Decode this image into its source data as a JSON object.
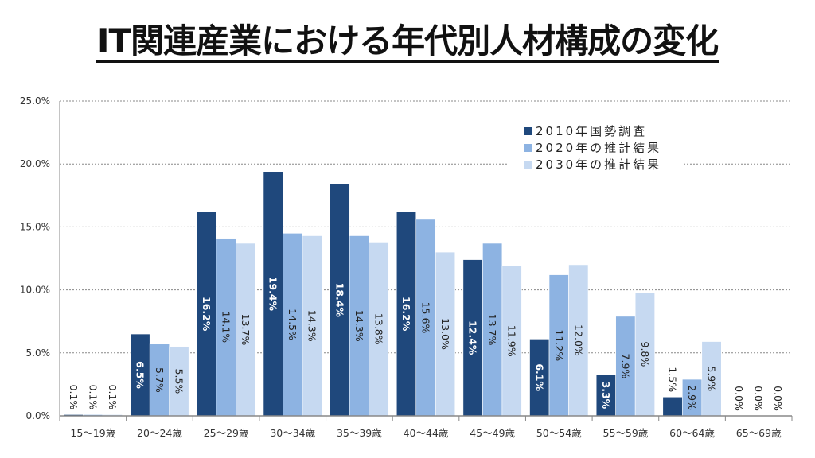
{
  "chart_data": {
    "type": "bar",
    "title": "IT関連産業における年代別人材構成の変化",
    "categories": [
      "15～19歳",
      "20～24歳",
      "25～29歳",
      "30～34歳",
      "35～39歳",
      "40～44歳",
      "45～49歳",
      "50～54歳",
      "55～59歳",
      "60～64歳",
      "65～69歳"
    ],
    "series": [
      {
        "name": "2010年国勢調査",
        "color": "#1f487c",
        "values": [
          0.1,
          6.5,
          16.2,
          19.4,
          18.4,
          16.2,
          12.4,
          6.1,
          3.3,
          1.5,
          0.0
        ]
      },
      {
        "name": "2020年の推計結果",
        "color": "#8db3e2",
        "values": [
          0.1,
          5.7,
          14.1,
          14.5,
          14.3,
          15.6,
          13.7,
          11.2,
          7.9,
          2.9,
          0.0
        ]
      },
      {
        "name": "2030年の推計結果",
        "color": "#c6d9f1",
        "values": [
          0.1,
          5.5,
          13.7,
          14.3,
          13.8,
          13.0,
          11.9,
          12.0,
          9.8,
          5.9,
          0.0
        ]
      }
    ],
    "yticks": [
      "0.0%",
      "5.0%",
      "10.0%",
      "15.0%",
      "20.0%",
      "25.0%"
    ],
    "ylim": [
      0,
      25
    ],
    "ylabel": "",
    "xlabel": "",
    "grid": true,
    "legend_position": "top-right",
    "data_labels": true
  }
}
